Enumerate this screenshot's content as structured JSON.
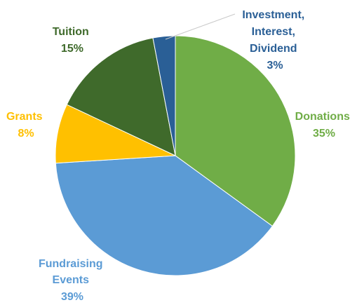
{
  "chart_data": {
    "type": "pie",
    "title": "",
    "start_angle_deg": 0,
    "direction": "clockwise",
    "slices": [
      {
        "label_lines": [
          "Donations"
        ],
        "percent_label": "35%",
        "value": 35,
        "color": "#70ad47",
        "label_color": "#70ad47"
      },
      {
        "label_lines": [
          "Fundraising",
          "Events"
        ],
        "percent_label": "39%",
        "value": 39,
        "color": "#5b9bd5",
        "label_color": "#5b9bd5"
      },
      {
        "label_lines": [
          "Grants"
        ],
        "percent_label": "8%",
        "value": 8,
        "color": "#ffc000",
        "label_color": "#ffc000"
      },
      {
        "label_lines": [
          "Tuition"
        ],
        "percent_label": "15%",
        "value": 15,
        "color": "#3f6a2b",
        "label_color": "#3f6a2b"
      },
      {
        "label_lines": [
          "Investment,",
          "Interest,",
          "Dividend"
        ],
        "percent_label": "3%",
        "value": 3,
        "color": "#2a5f96",
        "label_color": "#2a5f96"
      }
    ]
  }
}
